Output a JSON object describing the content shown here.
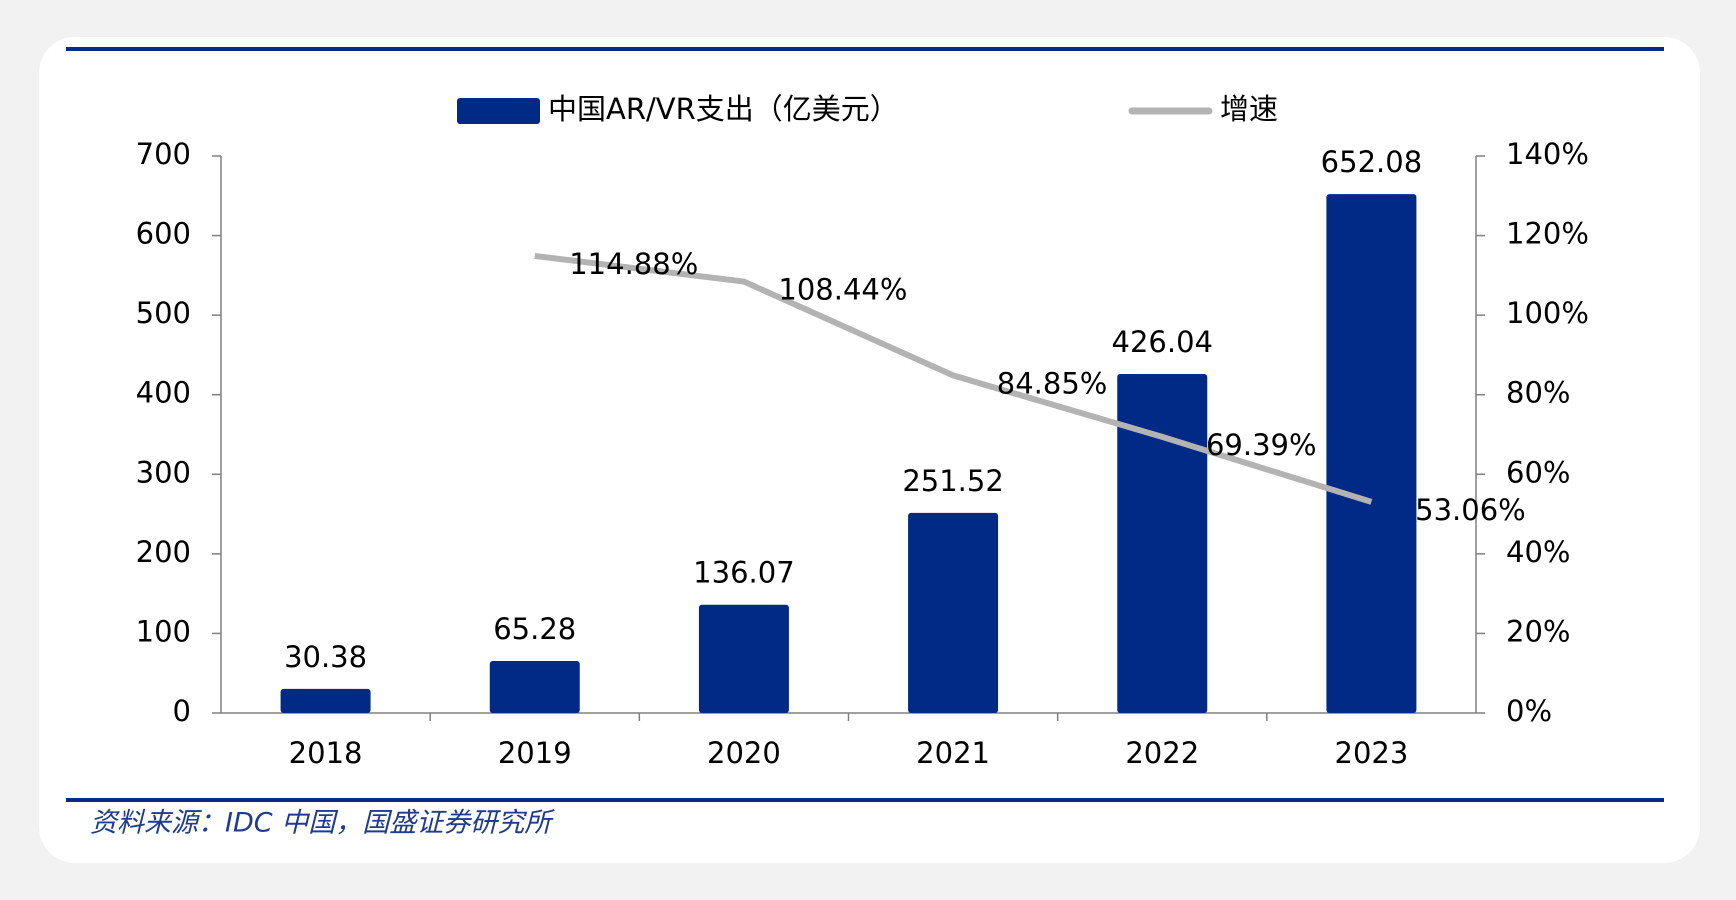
{
  "chart_data": {
    "type": "bar_line",
    "categories": [
      "2018",
      "2019",
      "2020",
      "2021",
      "2022",
      "2023"
    ],
    "series": [
      {
        "name": "中国AR/VR支出（亿美元）",
        "type": "bar",
        "color": "#002a86",
        "values": [
          30.38,
          65.28,
          136.07,
          251.52,
          426.04,
          652.08
        ]
      },
      {
        "name": "增速",
        "type": "line",
        "axis": "y2",
        "color": "#b3b3b3",
        "values": [
          null,
          114.88,
          108.44,
          84.85,
          69.39,
          53.06
        ],
        "value_labels": [
          null,
          "114.88%",
          "108.44%",
          "84.85%",
          "69.39%",
          "53.06%"
        ]
      }
    ],
    "ylim": [
      0,
      700
    ],
    "yticks": [
      0,
      100,
      200,
      300,
      400,
      500,
      600,
      700
    ],
    "y2lim": [
      0,
      140
    ],
    "y2ticks": [
      {
        "value": 0,
        "label": "0%"
      },
      {
        "value": 20,
        "label": "20%"
      },
      {
        "value": 40,
        "label": "40%"
      },
      {
        "value": 60,
        "label": "60%"
      },
      {
        "value": 80,
        "label": "80%"
      },
      {
        "value": 100,
        "label": "100%"
      },
      {
        "value": 120,
        "label": "120%"
      },
      {
        "value": 140,
        "label": "140%"
      }
    ],
    "source": "资料来源：IDC 中国，国盛证券研究所"
  }
}
